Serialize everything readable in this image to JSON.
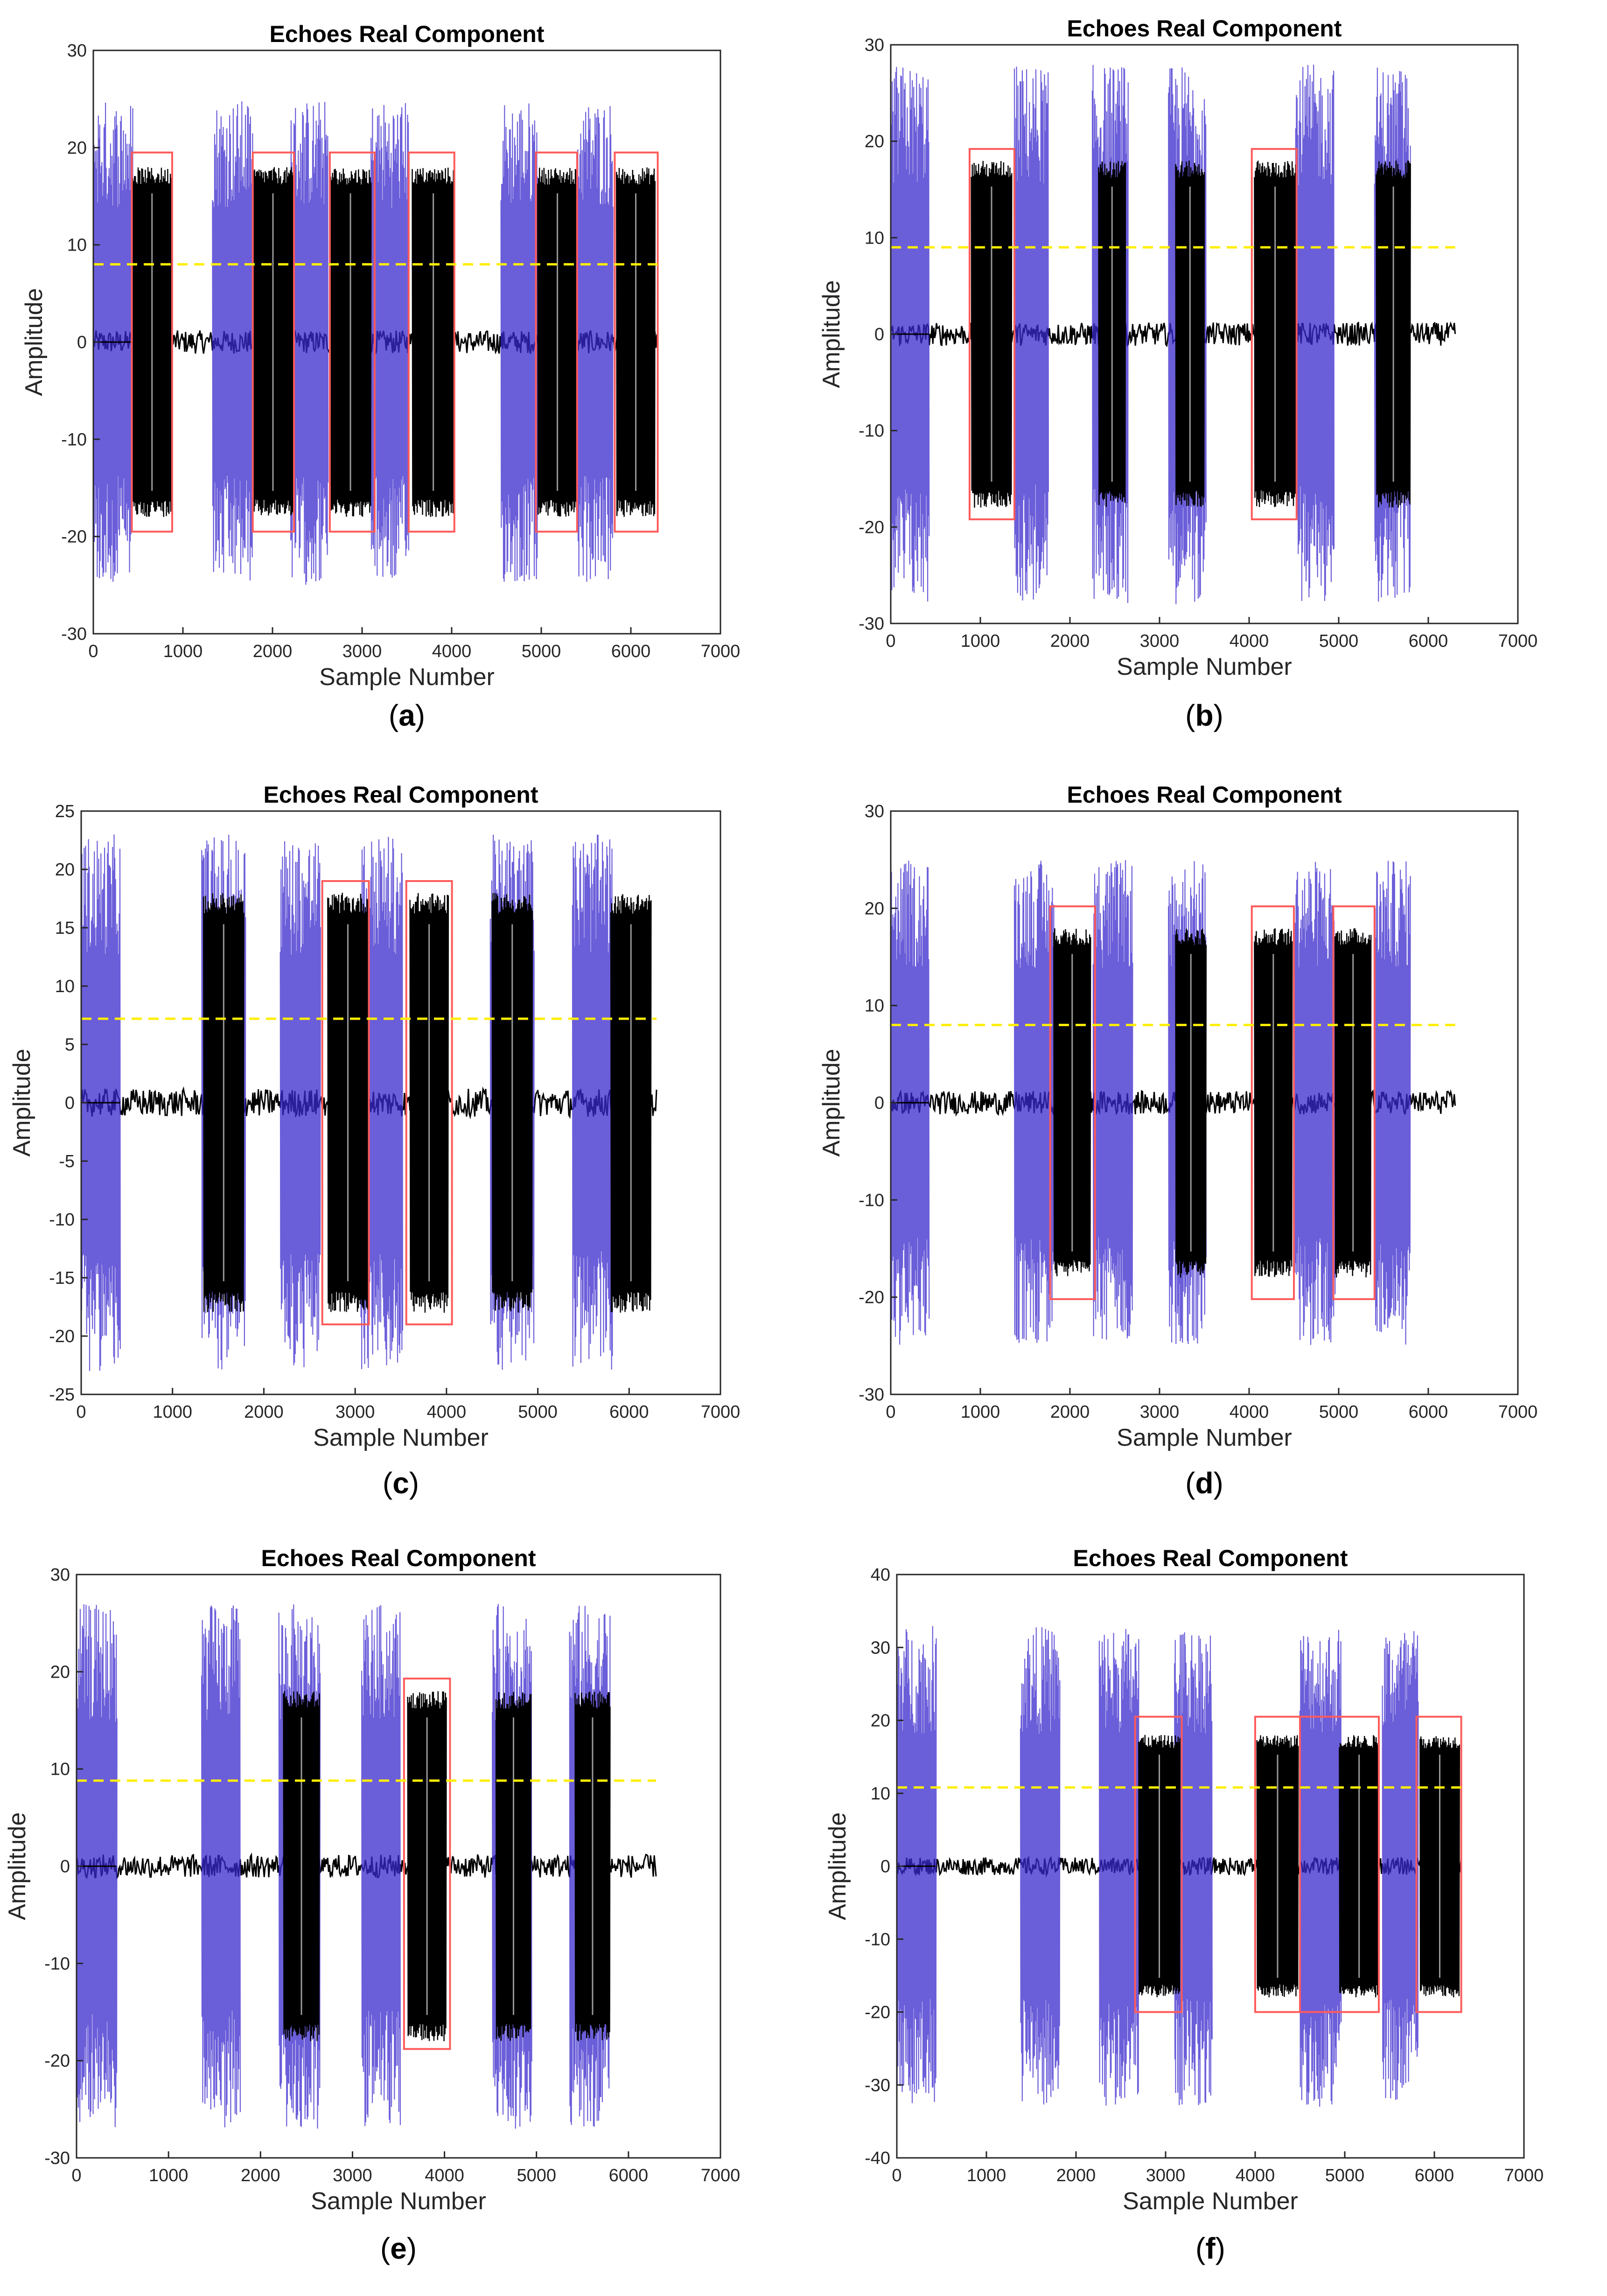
{
  "chart_data": [
    {
      "panel_label": "a",
      "type": "line",
      "title": "Echoes Real Component",
      "xlabel": "Sample Number",
      "ylabel": "Amplitude",
      "xlim": [
        0,
        7000
      ],
      "ylim": [
        -30,
        30
      ],
      "xticks": [
        0,
        1000,
        2000,
        3000,
        4000,
        5000,
        6000,
        7000
      ],
      "yticks": [
        -30,
        -20,
        -10,
        0,
        10,
        20,
        30
      ],
      "signal_length": 6300,
      "threshold": 8,
      "blue_bursts": [
        [
          0,
          440,
          25
        ],
        [
          1330,
          1780,
          25
        ],
        [
          2200,
          2620,
          25
        ],
        [
          3100,
          3520,
          25
        ],
        [
          4550,
          4960,
          25
        ],
        [
          5400,
          5800,
          25
        ]
      ],
      "black_bursts": [
        [
          430,
          880
        ],
        [
          1780,
          2230
        ],
        [
          2640,
          3100
        ],
        [
          3560,
          4030
        ],
        [
          4960,
          5400
        ],
        [
          5840,
          6270
        ]
      ],
      "detection_boxes": [
        [
          430,
          880,
          -19.5,
          19.5
        ],
        [
          1780,
          2240,
          -19.5,
          19.5
        ],
        [
          2640,
          3140,
          -19.5,
          19.5
        ],
        [
          3520,
          4030,
          -19.5,
          19.5
        ],
        [
          4940,
          5400,
          -19.5,
          19.5
        ],
        [
          5820,
          6300,
          -19.5,
          19.5
        ]
      ],
      "grid": false,
      "colors": {
        "raw": "#3a28cc",
        "filtered": "#000000",
        "box": "#ff5a5a",
        "threshold": "#ffee00"
      }
    },
    {
      "panel_label": "b",
      "type": "line",
      "title": "Echoes Real Component",
      "xlabel": "Sample Number",
      "ylabel": "Amplitude",
      "xlim": [
        0,
        7000
      ],
      "ylim": [
        -30,
        30
      ],
      "xticks": [
        0,
        1000,
        2000,
        3000,
        4000,
        5000,
        6000,
        7000
      ],
      "yticks": [
        -30,
        -20,
        -10,
        0,
        10,
        20,
        30
      ],
      "signal_length": 6300,
      "threshold": 9,
      "blue_bursts": [
        [
          0,
          430,
          28
        ],
        [
          1380,
          1760,
          28
        ],
        [
          2250,
          2650,
          28
        ],
        [
          3100,
          3520,
          28
        ],
        [
          4520,
          4950,
          28
        ],
        [
          5400,
          5800,
          28
        ]
      ],
      "black_bursts": [
        [
          900,
          1350
        ],
        [
          2320,
          2620
        ],
        [
          3180,
          3500
        ],
        [
          4060,
          4520
        ],
        [
          5420,
          5800
        ]
      ],
      "detection_boxes": [
        [
          880,
          1380,
          -19.2,
          19.2
        ],
        [
          4030,
          4530,
          -19.2,
          19.2
        ]
      ],
      "grid": false,
      "colors": {
        "raw": "#3a28cc",
        "filtered": "#000000",
        "box": "#ff5a5a",
        "threshold": "#ffee00"
      }
    },
    {
      "panel_label": "c",
      "type": "line",
      "title": "Echoes Real Component",
      "xlabel": "Sample Number",
      "ylabel": "Amplitude",
      "xlim": [
        0,
        7000
      ],
      "ylim": [
        -25,
        25
      ],
      "xticks": [
        0,
        1000,
        2000,
        3000,
        4000,
        5000,
        6000,
        7000
      ],
      "yticks": [
        -25,
        -20,
        -15,
        -10,
        -5,
        0,
        5,
        10,
        15,
        20,
        25
      ],
      "signal_length": 6300,
      "threshold": 7.2,
      "blue_bursts": [
        [
          0,
          430,
          23
        ],
        [
          1320,
          1800,
          23
        ],
        [
          2180,
          2620,
          23
        ],
        [
          3060,
          3520,
          23
        ],
        [
          4480,
          4960,
          23
        ],
        [
          5380,
          5820,
          23
        ]
      ],
      "black_bursts": [
        [
          1340,
          1780
        ],
        [
          2700,
          3140
        ],
        [
          3600,
          4020
        ],
        [
          4500,
          4940
        ],
        [
          5800,
          6240
        ]
      ],
      "detection_boxes": [
        [
          2640,
          3150,
          -19,
          19
        ],
        [
          3560,
          4060,
          -19,
          19
        ]
      ],
      "grid": false,
      "colors": {
        "raw": "#3a28cc",
        "filtered": "#000000",
        "box": "#ff5a5a",
        "threshold": "#ffee00"
      }
    },
    {
      "panel_label": "d",
      "type": "line",
      "title": "Echoes Real Component",
      "xlabel": "Sample Number",
      "ylabel": "Amplitude",
      "xlim": [
        0,
        7000
      ],
      "ylim": [
        -30,
        30
      ],
      "xticks": [
        0,
        1000,
        2000,
        3000,
        4000,
        5000,
        6000,
        7000
      ],
      "yticks": [
        -30,
        -20,
        -10,
        0,
        10,
        20,
        30
      ],
      "signal_length": 6300,
      "threshold": 8,
      "blue_bursts": [
        [
          0,
          430,
          25
        ],
        [
          1380,
          1820,
          25
        ],
        [
          2260,
          2700,
          25
        ],
        [
          3100,
          3520,
          25
        ],
        [
          4500,
          4960,
          25
        ],
        [
          5400,
          5800,
          25
        ]
      ],
      "black_bursts": [
        [
          1820,
          2230
        ],
        [
          3180,
          3520
        ],
        [
          4060,
          4480
        ],
        [
          4960,
          5360
        ]
      ],
      "detection_boxes": [
        [
          1780,
          2280,
          -20.2,
          20.2
        ],
        [
          4030,
          4500,
          -20.2,
          20.2
        ],
        [
          4940,
          5400,
          -20.2,
          20.2
        ]
      ],
      "grid": false,
      "colors": {
        "raw": "#3a28cc",
        "filtered": "#000000",
        "box": "#ff5a5a",
        "threshold": "#ffee00"
      }
    },
    {
      "panel_label": "e",
      "type": "line",
      "title": "Echoes Real Component",
      "xlabel": "Sample Number",
      "ylabel": "Amplitude",
      "xlim": [
        0,
        7000
      ],
      "ylim": [
        -30,
        30
      ],
      "xticks": [
        0,
        1000,
        2000,
        3000,
        4000,
        5000,
        6000,
        7000
      ],
      "yticks": [
        -30,
        -20,
        -10,
        0,
        10,
        20,
        30
      ],
      "signal_length": 6300,
      "threshold": 8.8,
      "blue_bursts": [
        [
          0,
          440,
          27
        ],
        [
          1360,
          1780,
          27
        ],
        [
          2200,
          2650,
          27
        ],
        [
          3100,
          3520,
          27
        ],
        [
          4520,
          4950,
          27
        ],
        [
          5360,
          5800,
          27
        ]
      ],
      "black_bursts": [
        [
          2250,
          2640
        ],
        [
          3600,
          4020
        ],
        [
          4560,
          4940
        ],
        [
          5420,
          5800
        ]
      ],
      "detection_boxes": [
        [
          3560,
          4060,
          -18.8,
          19.3
        ]
      ],
      "grid": false,
      "colors": {
        "raw": "#3a28cc",
        "filtered": "#000000",
        "box": "#ff5a5a",
        "threshold": "#ffee00"
      }
    },
    {
      "panel_label": "f",
      "type": "line",
      "title": "Echoes Real Component",
      "xlabel": "Sample Number",
      "ylabel": "Amplitude",
      "xlim": [
        0,
        7000
      ],
      "ylim": [
        -40,
        40
      ],
      "xticks": [
        0,
        1000,
        2000,
        3000,
        4000,
        5000,
        6000,
        7000
      ],
      "yticks": [
        -40,
        -30,
        -20,
        -10,
        0,
        10,
        20,
        30,
        40
      ],
      "signal_length": 6300,
      "threshold": 10.8,
      "blue_bursts": [
        [
          0,
          440,
          33
        ],
        [
          1380,
          1820,
          33
        ],
        [
          2260,
          2700,
          33
        ],
        [
          3100,
          3520,
          33
        ],
        [
          4500,
          4960,
          33
        ],
        [
          5420,
          5820,
          33
        ]
      ],
      "black_bursts": [
        [
          2700,
          3160
        ],
        [
          4020,
          4480
        ],
        [
          4940,
          5380
        ],
        [
          5840,
          6280
        ]
      ],
      "detection_boxes": [
        [
          2660,
          3180,
          -20,
          20.5
        ],
        [
          4000,
          4500,
          -20,
          20.5
        ],
        [
          4500,
          5380,
          -20,
          20.5
        ],
        [
          5800,
          6300,
          -20,
          20.5
        ]
      ],
      "grid": false,
      "colors": {
        "raw": "#3a28cc",
        "filtered": "#000000",
        "box": "#ff5a5a",
        "threshold": "#ffee00"
      }
    }
  ]
}
